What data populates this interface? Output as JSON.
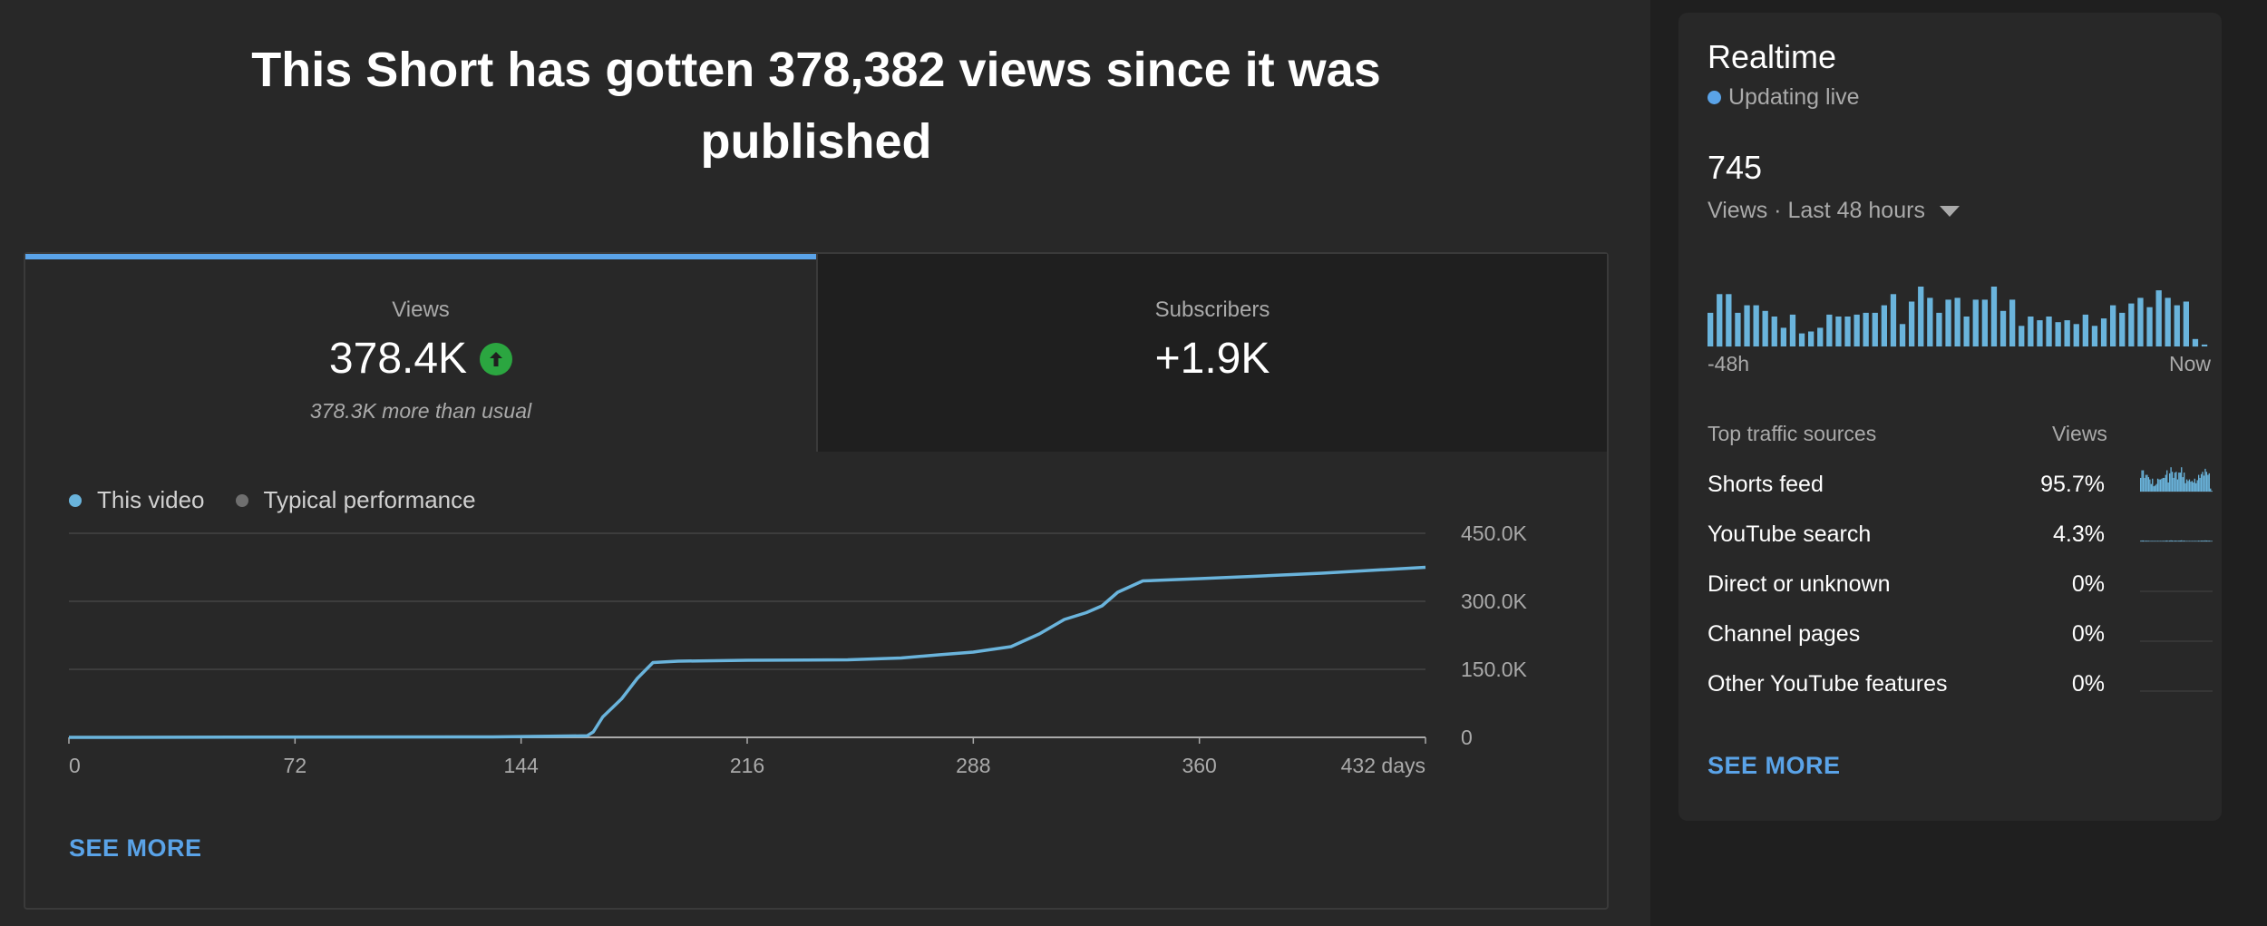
{
  "headline": "This Short has gotten 378,382 views since it was published",
  "metrics": {
    "views": {
      "label": "Views",
      "value": "378.4K",
      "note": "378.3K more than usual"
    },
    "subscribers": {
      "label": "Subscribers",
      "value": "+1.9K"
    }
  },
  "legend": {
    "this_video": "This video",
    "typical": "Typical performance"
  },
  "see_more": "SEE MORE",
  "colors": {
    "accent": "#5aa3e8",
    "line": "#6ab4dc",
    "up": "#2ba640",
    "typical": "#6f6f6f"
  },
  "chart_data": {
    "type": "line",
    "x_tick_labels": [
      "0",
      "72",
      "144",
      "216",
      "288",
      "360",
      "432 days"
    ],
    "y_tick_labels": [
      "450.0K",
      "300.0K",
      "150.0K",
      "0"
    ],
    "xlim": [
      0,
      432
    ],
    "ylim": [
      0,
      450000
    ],
    "grid": true,
    "series": [
      {
        "name": "This video",
        "x": [
          0,
          135,
          165,
          167,
          170,
          176,
          181,
          186,
          194,
          216,
          248,
          265,
          277,
          288,
          300,
          309,
          317,
          324,
          329,
          334,
          342,
          360,
          377,
          399,
          432
        ],
        "y": [
          0,
          1000,
          3500,
          12000,
          45000,
          85000,
          130000,
          165000,
          168000,
          170000,
          171000,
          175000,
          182000,
          188000,
          200000,
          228000,
          260000,
          275000,
          290000,
          320000,
          345000,
          350000,
          355000,
          362000,
          375000
        ]
      }
    ]
  },
  "realtime": {
    "title": "Realtime",
    "live_label": "Updating live",
    "count": "745",
    "range_label": "Views · Last 48 hours",
    "axis_start": "-48h",
    "axis_end": "Now",
    "chart_data": {
      "type": "bar",
      "x_tick_labels": [
        "-48h",
        "Now"
      ],
      "values": [
        18,
        28,
        28,
        18,
        22,
        22,
        19,
        16,
        10,
        17,
        7,
        8,
        10,
        17,
        16,
        16,
        17,
        18,
        18,
        22,
        28,
        12,
        24,
        32,
        26,
        18,
        25,
        26,
        16,
        25,
        25,
        32,
        19,
        25,
        11,
        16,
        14,
        16,
        13,
        14,
        12,
        17,
        11,
        15,
        22,
        18,
        23,
        26,
        21,
        30,
        26,
        22,
        24,
        4,
        1
      ]
    },
    "traffic_header": {
      "source": "Top traffic sources",
      "views": "Views"
    },
    "traffic_sources": [
      {
        "name": "Shorts feed",
        "pct": "95.7%",
        "share": 95.7
      },
      {
        "name": "YouTube search",
        "pct": "4.3%",
        "share": 4.3
      },
      {
        "name": "Direct or unknown",
        "pct": "0%",
        "share": 0
      },
      {
        "name": "Channel pages",
        "pct": "0%",
        "share": 0
      },
      {
        "name": "Other YouTube features",
        "pct": "0%",
        "share": 0
      }
    ],
    "see_more": "SEE MORE"
  }
}
